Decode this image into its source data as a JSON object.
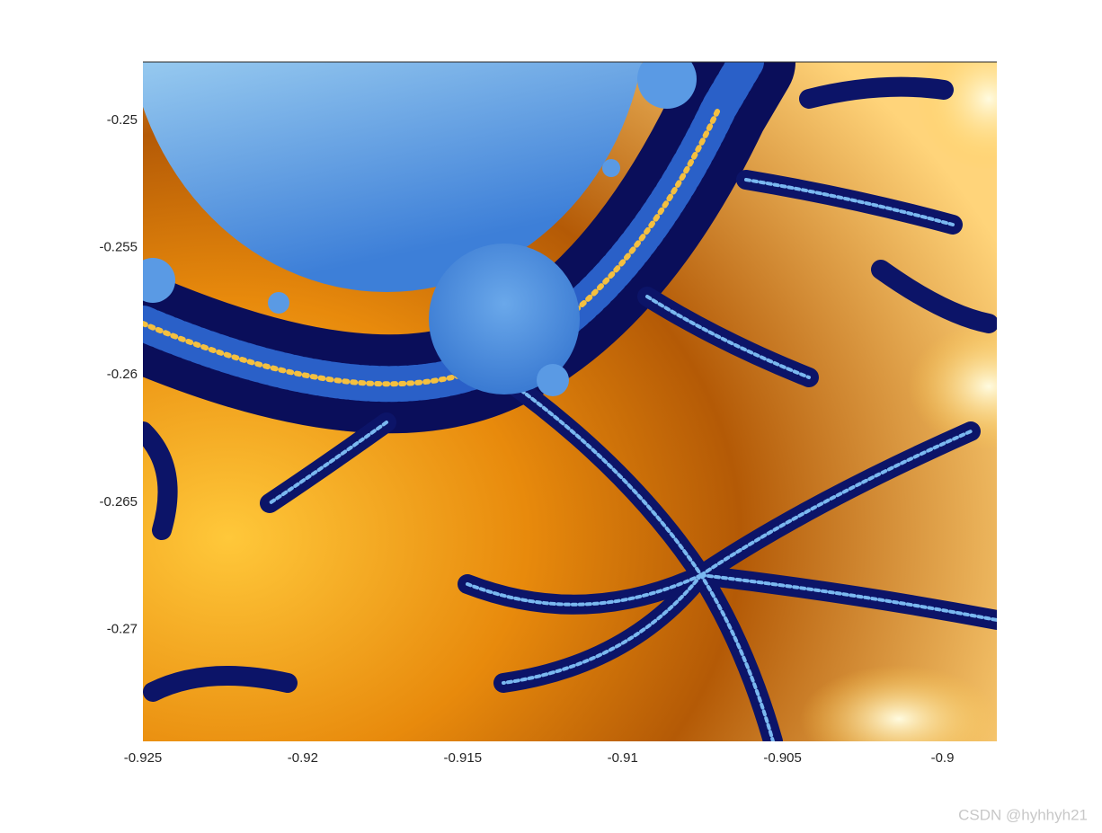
{
  "chart_data": {
    "type": "image",
    "xlim": [
      -0.925,
      -0.8983
    ],
    "xticks": [
      -0.925,
      -0.92,
      -0.915,
      -0.91,
      -0.905,
      -0.9
    ],
    "ylim": [
      -0.2744,
      -0.2477
    ],
    "yticks": [
      -0.25,
      -0.255,
      -0.26,
      -0.265,
      -0.27
    ],
    "watermark": "CSDN @hyhhyh21"
  }
}
